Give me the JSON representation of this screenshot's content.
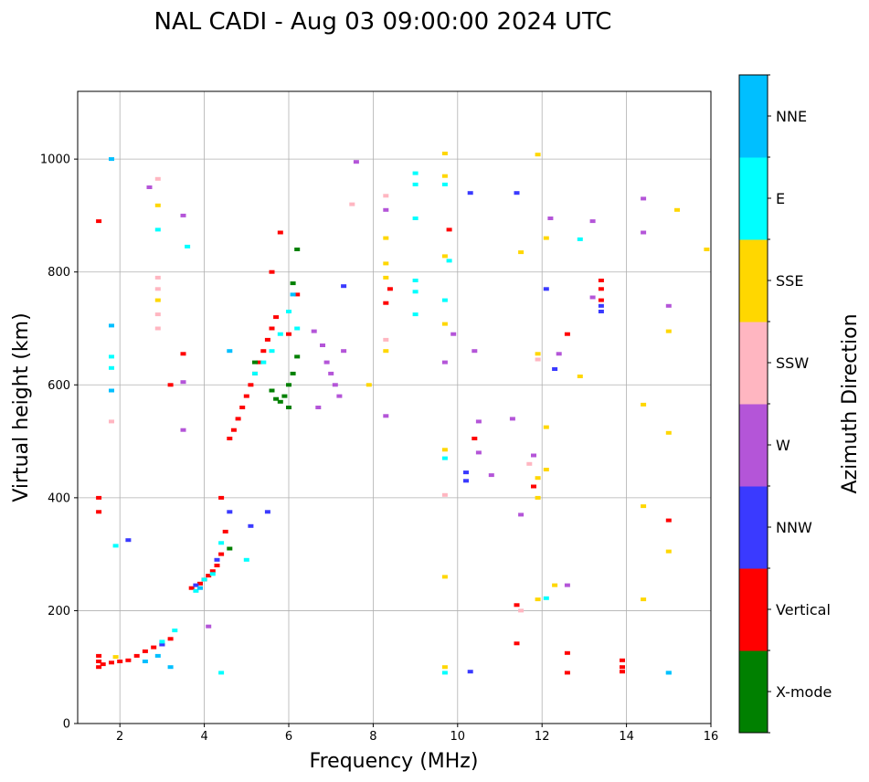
{
  "chart_data": {
    "type": "scatter",
    "title": "NAL CADI - Aug 03 09:00:00 2024 UTC",
    "xlabel": "Frequency (MHz)",
    "ylabel": "Virtual height (km)",
    "xlim": [
      1,
      16
    ],
    "ylim": [
      0,
      1120
    ],
    "xticks": [
      "2",
      "4",
      "6",
      "8",
      "10",
      "12",
      "14",
      "16"
    ],
    "yticks": [
      "0",
      "200",
      "400",
      "600",
      "800",
      "1000"
    ],
    "grid": true,
    "colorbar": {
      "label": "Azimuth Direction",
      "categories": [
        {
          "name": "X-mode",
          "color": "#008000"
        },
        {
          "name": "Vertical",
          "color": "#ff0000"
        },
        {
          "name": "NNW",
          "color": "#3a3aff"
        },
        {
          "name": "W",
          "color": "#b455d8"
        },
        {
          "name": "SSW",
          "color": "#ffb6c1"
        },
        {
          "name": "SSE",
          "color": "#ffd700"
        },
        {
          "name": "E",
          "color": "#00ffff"
        },
        {
          "name": "NNE",
          "color": "#00bfff"
        }
      ]
    },
    "series": [
      {
        "name": "Vertical",
        "points": [
          [
            1.5,
            890
          ],
          [
            1.5,
            400
          ],
          [
            1.5,
            375
          ],
          [
            1.5,
            120
          ],
          [
            1.5,
            110
          ],
          [
            1.5,
            100
          ],
          [
            1.6,
            105
          ],
          [
            1.8,
            108
          ],
          [
            2.0,
            110
          ],
          [
            2.2,
            112
          ],
          [
            2.4,
            120
          ],
          [
            2.6,
            128
          ],
          [
            2.8,
            135
          ],
          [
            3.0,
            140
          ],
          [
            3.2,
            150
          ],
          [
            3.2,
            600
          ],
          [
            3.5,
            655
          ],
          [
            3.7,
            240
          ],
          [
            3.9,
            248
          ],
          [
            4.0,
            255
          ],
          [
            4.1,
            262
          ],
          [
            4.2,
            270
          ],
          [
            4.3,
            280
          ],
          [
            4.4,
            300
          ],
          [
            4.5,
            340
          ],
          [
            4.4,
            400
          ],
          [
            4.6,
            505
          ],
          [
            4.7,
            520
          ],
          [
            4.8,
            540
          ],
          [
            4.9,
            560
          ],
          [
            5.0,
            580
          ],
          [
            5.1,
            600
          ],
          [
            5.2,
            620
          ],
          [
            5.3,
            640
          ],
          [
            5.4,
            660
          ],
          [
            5.5,
            680
          ],
          [
            5.6,
            700
          ],
          [
            5.7,
            720
          ],
          [
            5.6,
            800
          ],
          [
            5.8,
            870
          ],
          [
            6.0,
            690
          ],
          [
            6.2,
            760
          ],
          [
            8.3,
            745
          ],
          [
            8.4,
            770
          ],
          [
            9.8,
            875
          ],
          [
            10.4,
            505
          ],
          [
            11.4,
            210
          ],
          [
            11.4,
            142
          ],
          [
            11.8,
            420
          ],
          [
            12.6,
            690
          ],
          [
            12.6,
            125
          ],
          [
            12.6,
            90
          ],
          [
            13.4,
            785
          ],
          [
            13.4,
            770
          ],
          [
            13.4,
            750
          ],
          [
            13.9,
            112
          ],
          [
            13.9,
            100
          ],
          [
            13.9,
            92
          ],
          [
            15.0,
            360
          ]
        ]
      },
      {
        "name": "X-mode",
        "points": [
          [
            5.6,
            590
          ],
          [
            5.7,
            575
          ],
          [
            5.8,
            570
          ],
          [
            5.9,
            580
          ],
          [
            6.0,
            600
          ],
          [
            6.1,
            620
          ],
          [
            6.0,
            560
          ],
          [
            6.2,
            650
          ],
          [
            6.1,
            780
          ],
          [
            5.2,
            640
          ],
          [
            4.6,
            310
          ],
          [
            6.2,
            840
          ]
        ]
      },
      {
        "name": "NNW",
        "points": [
          [
            2.2,
            325
          ],
          [
            3.0,
            140
          ],
          [
            3.8,
            245
          ],
          [
            4.3,
            290
          ],
          [
            4.6,
            375
          ],
          [
            5.1,
            350
          ],
          [
            5.5,
            375
          ],
          [
            7.3,
            775
          ],
          [
            10.3,
            940
          ],
          [
            10.2,
            445
          ],
          [
            10.2,
            430
          ],
          [
            11.4,
            940
          ],
          [
            12.1,
            770
          ],
          [
            12.3,
            628
          ],
          [
            13.4,
            740
          ],
          [
            13.4,
            730
          ],
          [
            10.3,
            92
          ]
        ]
      },
      {
        "name": "W",
        "points": [
          [
            2.7,
            950
          ],
          [
            3.5,
            900
          ],
          [
            3.5,
            605
          ],
          [
            3.5,
            520
          ],
          [
            6.6,
            695
          ],
          [
            6.8,
            670
          ],
          [
            6.9,
            640
          ],
          [
            7.0,
            620
          ],
          [
            7.1,
            600
          ],
          [
            7.2,
            580
          ],
          [
            7.3,
            660
          ],
          [
            6.7,
            560
          ],
          [
            8.3,
            910
          ],
          [
            8.3,
            545
          ],
          [
            9.7,
            640
          ],
          [
            9.9,
            690
          ],
          [
            10.4,
            660
          ],
          [
            10.5,
            535
          ],
          [
            10.5,
            480
          ],
          [
            10.8,
            440
          ],
          [
            11.3,
            540
          ],
          [
            11.5,
            370
          ],
          [
            11.8,
            475
          ],
          [
            12.2,
            895
          ],
          [
            12.4,
            655
          ],
          [
            12.6,
            245
          ],
          [
            13.2,
            890
          ],
          [
            13.2,
            755
          ],
          [
            14.4,
            930
          ],
          [
            14.4,
            870
          ],
          [
            15.0,
            740
          ],
          [
            7.6,
            995
          ],
          [
            4.1,
            172
          ]
        ]
      },
      {
        "name": "SSW",
        "points": [
          [
            2.9,
            965
          ],
          [
            2.9,
            790
          ],
          [
            2.9,
            770
          ],
          [
            2.9,
            725
          ],
          [
            7.5,
            920
          ],
          [
            8.3,
            935
          ],
          [
            8.3,
            680
          ],
          [
            9.7,
            405
          ],
          [
            11.7,
            460
          ],
          [
            11.9,
            645
          ],
          [
            11.5,
            200
          ],
          [
            1.8,
            535
          ],
          [
            2.9,
            700
          ]
        ]
      },
      {
        "name": "SSE",
        "points": [
          [
            2.9,
            918
          ],
          [
            2.9,
            750
          ],
          [
            1.9,
            118
          ],
          [
            8.3,
            860
          ],
          [
            8.3,
            815
          ],
          [
            8.3,
            790
          ],
          [
            8.3,
            660
          ],
          [
            9.7,
            1010
          ],
          [
            9.7,
            970
          ],
          [
            9.7,
            828
          ],
          [
            9.7,
            708
          ],
          [
            9.7,
            485
          ],
          [
            9.7,
            260
          ],
          [
            9.7,
            100
          ],
          [
            11.5,
            835
          ],
          [
            11.9,
            1008
          ],
          [
            11.9,
            655
          ],
          [
            11.9,
            435
          ],
          [
            11.9,
            400
          ],
          [
            12.1,
            860
          ],
          [
            12.1,
            525
          ],
          [
            12.1,
            450
          ],
          [
            12.3,
            245
          ],
          [
            12.9,
            615
          ],
          [
            14.4,
            565
          ],
          [
            14.4,
            385
          ],
          [
            14.4,
            220
          ],
          [
            15.0,
            695
          ],
          [
            15.0,
            515
          ],
          [
            15.0,
            305
          ],
          [
            15.2,
            910
          ],
          [
            15.9,
            840
          ],
          [
            11.9,
            220
          ],
          [
            7.9,
            600
          ]
        ]
      },
      {
        "name": "E",
        "points": [
          [
            1.8,
            630
          ],
          [
            1.8,
            650
          ],
          [
            1.9,
            315
          ],
          [
            2.9,
            875
          ],
          [
            3.0,
            145
          ],
          [
            3.3,
            165
          ],
          [
            3.8,
            235
          ],
          [
            4.0,
            255
          ],
          [
            4.2,
            265
          ],
          [
            4.4,
            320
          ],
          [
            5.0,
            290
          ],
          [
            5.2,
            620
          ],
          [
            5.4,
            640
          ],
          [
            5.6,
            660
          ],
          [
            5.8,
            690
          ],
          [
            6.0,
            730
          ],
          [
            6.2,
            700
          ],
          [
            9.0,
            975
          ],
          [
            9.0,
            955
          ],
          [
            9.0,
            895
          ],
          [
            9.0,
            785
          ],
          [
            9.0,
            765
          ],
          [
            9.0,
            725
          ],
          [
            9.7,
            955
          ],
          [
            9.8,
            820
          ],
          [
            9.7,
            750
          ],
          [
            9.7,
            470
          ],
          [
            12.1,
            222
          ],
          [
            12.9,
            858
          ],
          [
            15.0,
            90
          ],
          [
            4.4,
            90
          ],
          [
            3.6,
            845
          ],
          [
            9.7,
            90
          ]
        ]
      },
      {
        "name": "NNE",
        "points": [
          [
            1.8,
            1000
          ],
          [
            1.8,
            705
          ],
          [
            1.8,
            590
          ],
          [
            2.6,
            110
          ],
          [
            2.9,
            120
          ],
          [
            3.2,
            100
          ],
          [
            3.9,
            240
          ],
          [
            4.6,
            660
          ],
          [
            6.1,
            760
          ],
          [
            15.0,
            90
          ]
        ]
      }
    ]
  }
}
